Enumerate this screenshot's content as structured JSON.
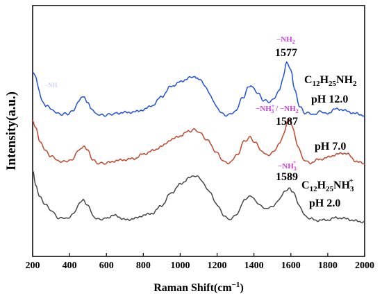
{
  "chart_data": {
    "type": "line",
    "xlabel": "Raman Shift(cm",
    "xlabel_sup": "−1",
    "xlabel_close": ")",
    "ylabel": "Intensity(a.u.)",
    "xlim": [
      200,
      2000
    ],
    "xticks": [
      "200",
      "400",
      "600",
      "800",
      "1000",
      "1200",
      "1400",
      "1600",
      "1800",
      "2000"
    ],
    "grid": false,
    "series": [
      {
        "color": "#1f4fd8",
        "points": [
          [
            200,
            0.78
          ],
          [
            215,
            0.75
          ],
          [
            230,
            0.52
          ],
          [
            250,
            0.3
          ],
          [
            270,
            0.2
          ],
          [
            300,
            0.14
          ],
          [
            330,
            0.06
          ],
          [
            360,
            0.04
          ],
          [
            390,
            0.05
          ],
          [
            420,
            0.1
          ],
          [
            450,
            0.28
          ],
          [
            475,
            0.36
          ],
          [
            500,
            0.26
          ],
          [
            520,
            0.12
          ],
          [
            550,
            0.04
          ],
          [
            580,
            0.02
          ],
          [
            610,
            0.03
          ],
          [
            650,
            0.06
          ],
          [
            700,
            0.07
          ],
          [
            750,
            0.08
          ],
          [
            800,
            0.12
          ],
          [
            850,
            0.2
          ],
          [
            900,
            0.36
          ],
          [
            950,
            0.54
          ],
          [
            1000,
            0.62
          ],
          [
            1050,
            0.7
          ],
          [
            1080,
            0.72
          ],
          [
            1100,
            0.68
          ],
          [
            1130,
            0.58
          ],
          [
            1160,
            0.4
          ],
          [
            1200,
            0.16
          ],
          [
            1230,
            0.04
          ],
          [
            1260,
            0.02
          ],
          [
            1300,
            0.1
          ],
          [
            1340,
            0.34
          ],
          [
            1370,
            0.52
          ],
          [
            1390,
            0.54
          ],
          [
            1420,
            0.42
          ],
          [
            1450,
            0.3
          ],
          [
            1480,
            0.26
          ],
          [
            1510,
            0.32
          ],
          [
            1540,
            0.5
          ],
          [
            1560,
            0.72
          ],
          [
            1577,
            0.98
          ],
          [
            1600,
            0.84
          ],
          [
            1620,
            0.48
          ],
          [
            1650,
            0.16
          ],
          [
            1680,
            0.06
          ],
          [
            1720,
            0.04
          ],
          [
            1760,
            0.08
          ],
          [
            1800,
            0.06
          ],
          [
            1850,
            0.14
          ],
          [
            1900,
            0.1
          ],
          [
            1950,
            0.05
          ],
          [
            2000,
            0.02
          ]
        ]
      },
      {
        "color": "#c0452c",
        "points": [
          [
            200,
            0.82
          ],
          [
            215,
            0.7
          ],
          [
            240,
            0.45
          ],
          [
            270,
            0.28
          ],
          [
            300,
            0.18
          ],
          [
            340,
            0.1
          ],
          [
            380,
            0.08
          ],
          [
            420,
            0.14
          ],
          [
            450,
            0.3
          ],
          [
            475,
            0.36
          ],
          [
            500,
            0.28
          ],
          [
            530,
            0.1
          ],
          [
            560,
            0.05
          ],
          [
            600,
            0.06
          ],
          [
            650,
            0.1
          ],
          [
            700,
            0.12
          ],
          [
            750,
            0.14
          ],
          [
            800,
            0.22
          ],
          [
            850,
            0.28
          ],
          [
            900,
            0.36
          ],
          [
            950,
            0.48
          ],
          [
            1000,
            0.55
          ],
          [
            1050,
            0.64
          ],
          [
            1080,
            0.66
          ],
          [
            1110,
            0.6
          ],
          [
            1150,
            0.46
          ],
          [
            1200,
            0.24
          ],
          [
            1240,
            0.08
          ],
          [
            1270,
            0.06
          ],
          [
            1310,
            0.22
          ],
          [
            1350,
            0.46
          ],
          [
            1380,
            0.52
          ],
          [
            1410,
            0.42
          ],
          [
            1440,
            0.28
          ],
          [
            1470,
            0.2
          ],
          [
            1500,
            0.24
          ],
          [
            1540,
            0.42
          ],
          [
            1565,
            0.62
          ],
          [
            1587,
            0.86
          ],
          [
            1610,
            0.7
          ],
          [
            1640,
            0.34
          ],
          [
            1670,
            0.12
          ],
          [
            1700,
            0.06
          ],
          [
            1750,
            0.12
          ],
          [
            1800,
            0.16
          ],
          [
            1850,
            0.22
          ],
          [
            1900,
            0.24
          ],
          [
            1950,
            0.1
          ],
          [
            2000,
            0.04
          ]
        ]
      },
      {
        "color": "#454545",
        "points": [
          [
            200,
            0.96
          ],
          [
            215,
            0.7
          ],
          [
            240,
            0.46
          ],
          [
            270,
            0.34
          ],
          [
            300,
            0.22
          ],
          [
            340,
            0.1
          ],
          [
            380,
            0.08
          ],
          [
            420,
            0.16
          ],
          [
            450,
            0.34
          ],
          [
            475,
            0.42
          ],
          [
            500,
            0.32
          ],
          [
            530,
            0.12
          ],
          [
            560,
            0.06
          ],
          [
            600,
            0.1
          ],
          [
            650,
            0.14
          ],
          [
            700,
            0.06
          ],
          [
            750,
            0.08
          ],
          [
            800,
            0.14
          ],
          [
            850,
            0.18
          ],
          [
            900,
            0.32
          ],
          [
            950,
            0.54
          ],
          [
            1000,
            0.7
          ],
          [
            1050,
            0.82
          ],
          [
            1080,
            0.86
          ],
          [
            1110,
            0.8
          ],
          [
            1150,
            0.6
          ],
          [
            1200,
            0.34
          ],
          [
            1240,
            0.12
          ],
          [
            1270,
            0.06
          ],
          [
            1310,
            0.18
          ],
          [
            1350,
            0.42
          ],
          [
            1380,
            0.5
          ],
          [
            1410,
            0.4
          ],
          [
            1440,
            0.3
          ],
          [
            1470,
            0.26
          ],
          [
            1500,
            0.3
          ],
          [
            1540,
            0.44
          ],
          [
            1565,
            0.56
          ],
          [
            1589,
            0.64
          ],
          [
            1610,
            0.58
          ],
          [
            1640,
            0.36
          ],
          [
            1670,
            0.16
          ],
          [
            1700,
            0.08
          ],
          [
            1750,
            0.05
          ],
          [
            1800,
            0.06
          ],
          [
            1850,
            0.1
          ],
          [
            1900,
            0.08
          ],
          [
            1950,
            0.04
          ],
          [
            2000,
            0.02
          ]
        ]
      }
    ],
    "annotations": {
      "peak_blue": "1577",
      "peak_red": "1587",
      "peak_black": "1589",
      "group_blue": "−NH",
      "group_blue_sub": "2",
      "group_red_a": "−NH",
      "group_red_a_sup": "+",
      "group_red_a_sub": "3",
      "group_red_sep": " / −NH",
      "group_red_b_sub": "2",
      "group_black": "−NH",
      "group_black_sub": "3",
      "group_black_sup": "+",
      "faint_left": "−NH",
      "sample_blue_a": "C",
      "sample_blue_a_sub1": "12",
      "sample_blue_a_mid": "H",
      "sample_blue_a_sub2": "25",
      "sample_blue_a_end": "NH",
      "sample_blue_a_sub3": "2",
      "sample_blue_ph": "pH 12.0",
      "sample_red_ph": "pH 7.0",
      "sample_black_a": "C",
      "sample_black_a_sub1": "12",
      "sample_black_a_mid": "H",
      "sample_black_a_sub2": "25",
      "sample_black_a_end": "NH",
      "sample_black_a_sub3": "3",
      "sample_black_a_sup": "+",
      "sample_black_ph": "pH 2.0"
    },
    "colors": {
      "annotation": "#d040e0",
      "axis": "#000000"
    }
  }
}
